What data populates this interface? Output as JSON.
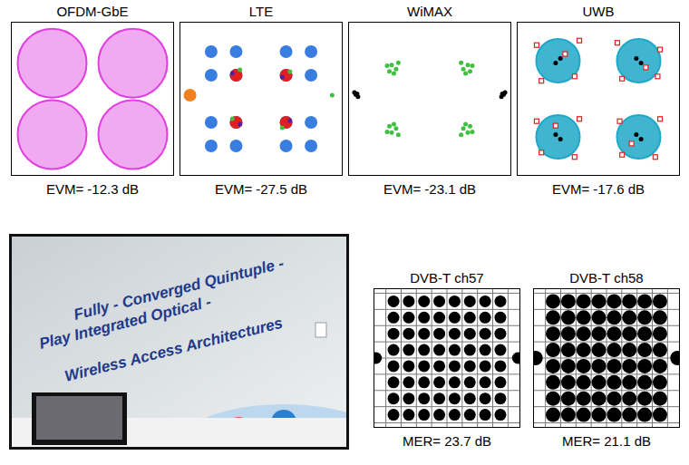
{
  "chart_data": [
    {
      "type": "scatter",
      "title": "OFDM-GbE",
      "caption": "EVM= -12.3 dB",
      "xlim": [
        -1.6,
        1.6
      ],
      "ylim": [
        -1.6,
        1.6
      ],
      "grid": false,
      "tick_labels": false,
      "series": [
        {
          "color": "#e040e0",
          "marker": "blob",
          "x": [
            -0.8,
            0.8,
            -0.8,
            0.8
          ],
          "values": [
            0.75,
            0.75,
            -0.75,
            -0.75
          ]
        }
      ]
    },
    {
      "type": "scatter",
      "title": "LTE",
      "caption": "EVM= -27.5 dB",
      "xlim": [
        -4.2,
        4.2
      ],
      "ylim": [
        -4.2,
        4.2
      ],
      "grid": false,
      "tick_labels": false,
      "series": [
        {
          "color": "#3a7de0",
          "marker": "blob",
          "x": [
            -2.6,
            -1.3,
            1.3,
            2.6,
            -2.6,
            -1.3,
            1.3,
            2.6,
            -2.6,
            -1.3,
            1.3,
            2.6,
            -2.6,
            -1.3,
            1.3,
            2.6
          ],
          "values": [
            2.6,
            2.6,
            2.6,
            2.6,
            1.3,
            1.3,
            1.3,
            1.3,
            -1.3,
            -1.3,
            -1.3,
            -1.3,
            -2.6,
            -2.6,
            -2.6,
            -2.6
          ]
        },
        {
          "color": "#e02020",
          "marker": "blob",
          "x": [
            -1.3,
            1.3,
            -1.3,
            1.3
          ],
          "values": [
            1.3,
            1.3,
            -1.3,
            -1.3
          ]
        },
        {
          "color": "#5020a0",
          "marker": "dot",
          "x": [
            -1.5,
            1.1,
            -1.1,
            1.5
          ],
          "values": [
            1.4,
            1.2,
            -1.4,
            -1.2
          ]
        },
        {
          "color": "#40c040",
          "marker": "dot",
          "x": [
            -1.1,
            1.5,
            -1.5,
            1.1,
            3.7
          ],
          "values": [
            1.6,
            1.5,
            -1.1,
            -1.6,
            0.2
          ]
        },
        {
          "color": "#f08020",
          "marker": "blob",
          "x": [
            -3.7
          ],
          "values": [
            0.2
          ]
        }
      ]
    },
    {
      "type": "scatter",
      "title": "WiMAX",
      "caption": "EVM= -23.1 dB",
      "xlim": [
        -1.8,
        1.8
      ],
      "ylim": [
        -1.8,
        1.8
      ],
      "grid": false,
      "tick_labels": false,
      "series": [
        {
          "color": "#40c040",
          "marker": "dot",
          "x": [
            -0.85,
            -0.75,
            -0.9,
            -0.7,
            -0.8,
            -0.95,
            0.85,
            0.75,
            0.9,
            0.7,
            0.8,
            0.95,
            -0.85,
            -0.75,
            -0.9,
            -0.7,
            -0.8,
            -0.95,
            0.85,
            0.75,
            0.9,
            0.7,
            0.8,
            0.95
          ],
          "values": [
            0.8,
            0.7,
            0.65,
            0.85,
            0.6,
            0.78,
            0.8,
            0.7,
            0.65,
            0.85,
            0.6,
            0.78,
            -0.8,
            -0.7,
            -0.65,
            -0.85,
            -0.6,
            -0.78,
            -0.8,
            -0.7,
            -0.65,
            -0.85,
            -0.6,
            -0.78
          ]
        },
        {
          "color": "#000000",
          "marker": "dot",
          "x": [
            -1.65,
            -1.6,
            -1.68,
            -1.62,
            1.65,
            1.6,
            1.68,
            1.62
          ],
          "values": [
            0.1,
            0.05,
            0.15,
            0.12,
            0.1,
            0.05,
            0.15,
            0.12
          ]
        }
      ]
    },
    {
      "type": "scatter",
      "title": "UWB",
      "caption": "EVM= -17.6 dB",
      "xlim": [
        -1.7,
        1.7
      ],
      "ylim": [
        -1.7,
        1.7
      ],
      "grid": false,
      "tick_labels": false,
      "series": [
        {
          "color": "#20a8c8",
          "marker": "blob",
          "x": [
            -0.85,
            0.85,
            -0.85,
            0.85
          ],
          "values": [
            0.85,
            0.85,
            -0.85,
            -0.85
          ]
        },
        {
          "color": "#000000",
          "marker": "dot",
          "x": [
            -0.8,
            -0.9,
            0.8,
            0.9,
            -0.8,
            -0.9,
            0.8,
            0.9
          ],
          "values": [
            0.9,
            0.8,
            0.9,
            0.8,
            -0.9,
            -0.8,
            -0.8,
            -0.9
          ]
        },
        {
          "color": "#e02020",
          "marker": "square",
          "x": [
            -1.3,
            -0.4,
            -1.2,
            -0.5,
            0.4,
            1.3,
            1.25,
            0.5,
            -1.3,
            -0.4,
            -0.5,
            -1.2,
            0.45,
            1.3,
            1.2,
            0.5,
            -0.7,
            1.0,
            -0.9,
            0.7
          ],
          "values": [
            1.2,
            1.3,
            0.4,
            0.5,
            1.25,
            1.1,
            0.5,
            0.45,
            -0.5,
            -0.45,
            -1.3,
            -1.2,
            -0.5,
            -0.45,
            -1.3,
            -1.25,
            1.0,
            0.7,
            -0.6,
            -1.0
          ]
        }
      ]
    },
    {
      "type": "scatter",
      "title": "DVB-T ch57",
      "caption": "MER= 23.7 dB",
      "xlim": [
        -9.5,
        9.5
      ],
      "ylim": [
        -8.5,
        8.5
      ],
      "xticks": [
        -8,
        -6,
        -4,
        -2,
        0,
        2,
        4,
        6,
        8
      ],
      "yticks": [
        -8,
        -6,
        -4,
        -2,
        0,
        2,
        4,
        6,
        8
      ],
      "grid": true,
      "tick_labels": false,
      "series": [
        {
          "color": "#000000",
          "marker": "blob",
          "x": [
            -7,
            -5,
            -3,
            -1,
            1,
            3,
            5,
            7,
            -7,
            -5,
            -3,
            -1,
            1,
            3,
            5,
            7,
            -7,
            -5,
            -3,
            -1,
            1,
            3,
            5,
            7,
            -7,
            -5,
            -3,
            -1,
            1,
            3,
            5,
            7,
            -7,
            -5,
            -3,
            -1,
            1,
            3,
            5,
            7,
            -7,
            -5,
            -3,
            -1,
            1,
            3,
            5,
            7,
            -7,
            -5,
            -3,
            -1,
            1,
            3,
            5,
            7,
            -7,
            -5,
            -3,
            -1,
            1,
            3,
            5,
            7,
            -9.3,
            9.3
          ],
          "values": [
            7,
            7,
            7,
            7,
            7,
            7,
            7,
            7,
            5,
            5,
            5,
            5,
            5,
            5,
            5,
            5,
            3,
            3,
            3,
            3,
            3,
            3,
            3,
            3,
            1,
            1,
            1,
            1,
            1,
            1,
            1,
            1,
            -1,
            -1,
            -1,
            -1,
            -1,
            -1,
            -1,
            -1,
            -3,
            -3,
            -3,
            -3,
            -3,
            -3,
            -3,
            -3,
            -5,
            -5,
            -5,
            -5,
            -5,
            -5,
            -5,
            -5,
            -7,
            -7,
            -7,
            -7,
            -7,
            -7,
            -7,
            -7,
            0,
            0
          ]
        }
      ]
    },
    {
      "type": "scatter",
      "title": "DVB-T ch58",
      "caption": "MER= 21.1 dB",
      "xlim": [
        -9.5,
        9.5
      ],
      "ylim": [
        -8.5,
        8.5
      ],
      "xticks": [
        -8,
        -6,
        -4,
        -2,
        0,
        2,
        4,
        6,
        8
      ],
      "yticks": [
        -8,
        -6,
        -4,
        -2,
        0,
        2,
        4,
        6,
        8
      ],
      "grid": true,
      "tick_labels": false,
      "series": [
        {
          "color": "#000000",
          "marker": "blob",
          "x": [
            -7,
            -5,
            -3,
            -1,
            1,
            3,
            5,
            7,
            -7,
            -5,
            -3,
            -1,
            1,
            3,
            5,
            7,
            -7,
            -5,
            -3,
            -1,
            1,
            3,
            5,
            7,
            -7,
            -5,
            -3,
            -1,
            1,
            3,
            5,
            7,
            -7,
            -5,
            -3,
            -1,
            1,
            3,
            5,
            7,
            -7,
            -5,
            -3,
            -1,
            1,
            3,
            5,
            7,
            -7,
            -5,
            -3,
            -1,
            1,
            3,
            5,
            7,
            -7,
            -5,
            -3,
            -1,
            1,
            3,
            5,
            7,
            -9.3,
            9.3
          ],
          "values": [
            7,
            7,
            7,
            7,
            7,
            7,
            7,
            7,
            5,
            5,
            5,
            5,
            5,
            5,
            5,
            5,
            3,
            3,
            3,
            3,
            3,
            3,
            3,
            3,
            1,
            1,
            1,
            1,
            1,
            1,
            1,
            1,
            -1,
            -1,
            -1,
            -1,
            -1,
            -1,
            -1,
            -1,
            -3,
            -3,
            -3,
            -3,
            -3,
            -3,
            -3,
            -3,
            -5,
            -5,
            -5,
            -5,
            -5,
            -5,
            -5,
            -5,
            -7,
            -7,
            -7,
            -7,
            -7,
            -7,
            -7,
            -7,
            0,
            0
          ]
        }
      ]
    }
  ],
  "photo": {
    "banner": [
      "Fully - Converged Quintuple -",
      "Play Integrated Optical -",
      "Wireless Access Architectures"
    ]
  }
}
